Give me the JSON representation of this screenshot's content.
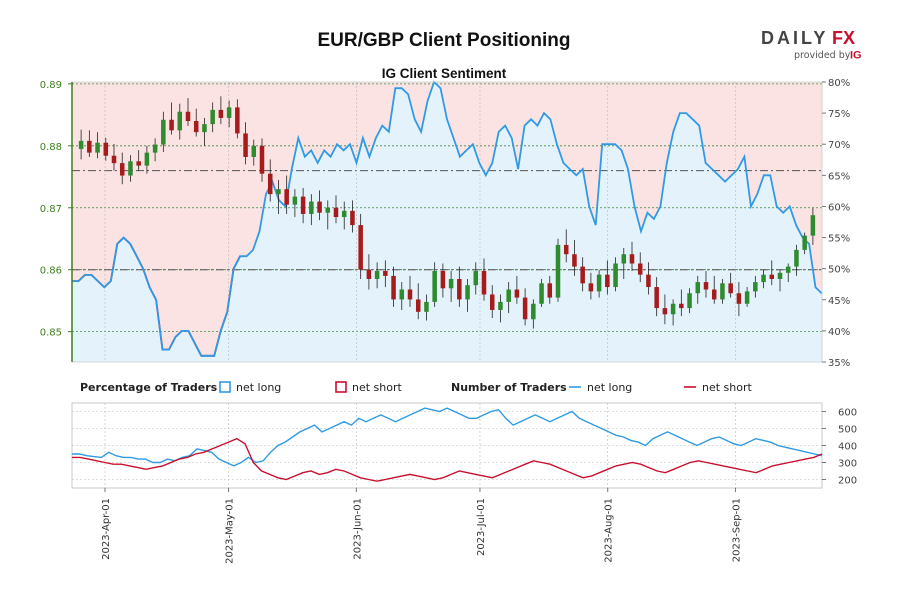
{
  "page": {
    "title": "EUR/GBP Client Positioning",
    "subtitle": "IG Client Sentiment",
    "brand": {
      "name_left": "DAILY",
      "name_right": "FX",
      "provided_by": "provided by",
      "ig": "IG"
    }
  },
  "colors": {
    "long": "#2f9be4",
    "short": "#c8102e",
    "long_fill": "#e4f2fb",
    "short_fill": "#fbe3e4",
    "bull": "#2e8b2e",
    "bear": "#a61c1c",
    "grid": "#3f8a3f",
    "price_axis": "#3f7f1f"
  },
  "legend": {
    "percentage_heading": "Percentage of Traders",
    "number_heading": "Number of Traders",
    "net_long": "net long",
    "net_short": "net short"
  },
  "chart_data": {
    "type": "candlestick+line",
    "x_axis": {
      "labels": [
        "2023-Apr-01",
        "2023-May-01",
        "2023-Jun-01",
        "2023-Jul-01",
        "2023-Aug-01",
        "2023-Sep-01"
      ],
      "range": [
        "2023-03-24",
        "2023-09-22"
      ]
    },
    "price_axis": {
      "ticks": [
        "0.89",
        "0.88",
        "0.87",
        "0.86",
        "0.85"
      ],
      "range": [
        0.8451,
        0.8903
      ]
    },
    "percent_axis": {
      "ticks": [
        "80%",
        "75%",
        "70%",
        "65%",
        "60%",
        "55%",
        "50%",
        "45%",
        "40%",
        "35%"
      ],
      "range": [
        35,
        80
      ]
    },
    "count_axis": {
      "ticks": [
        "600",
        "500",
        "400",
        "300",
        "200"
      ],
      "range": [
        150,
        650
      ]
    },
    "reference_lines": {
      "price": [
        0.86,
        0.876
      ]
    },
    "net_long_pct": [
      48,
      48,
      49,
      49,
      48,
      47,
      48,
      54,
      55,
      54,
      52,
      50,
      47,
      45,
      37,
      37,
      39,
      40,
      40,
      38,
      36,
      36,
      36,
      40,
      43,
      50,
      52,
      52,
      53,
      56,
      62,
      64,
      61,
      60,
      66,
      71,
      68,
      69,
      67,
      69,
      68,
      70,
      69,
      70,
      67,
      71,
      68,
      71,
      73,
      72,
      79,
      79,
      78,
      74,
      72,
      77,
      80,
      79,
      74,
      71,
      68,
      69,
      70,
      67,
      65,
      67,
      72,
      73,
      71,
      66,
      73,
      74,
      73,
      75,
      74,
      70,
      67,
      66,
      65,
      66,
      60,
      57,
      70,
      70,
      70,
      69,
      66,
      60,
      56,
      59,
      58,
      60,
      67,
      72,
      75,
      75,
      74,
      73,
      67,
      66,
      65,
      64,
      65,
      66,
      68,
      60,
      62,
      65,
      65,
      60,
      59,
      60,
      57,
      55,
      54,
      47,
      46
    ],
    "net_short_pct": [
      52,
      52,
      51,
      51,
      52,
      53,
      52,
      46,
      45,
      46,
      48,
      50,
      53,
      55,
      63,
      63,
      61,
      60,
      60,
      62,
      64,
      64,
      64,
      60,
      57,
      50,
      48
    ],
    "net_long_count": [
      350,
      350,
      340,
      335,
      330,
      360,
      340,
      330,
      330,
      320,
      320,
      300,
      300,
      320,
      310,
      330,
      340,
      380,
      370,
      360,
      320,
      300,
      280,
      300,
      330,
      300,
      310,
      360,
      400,
      420,
      450,
      480,
      500,
      520,
      480,
      500,
      520,
      540,
      520,
      560,
      540,
      560,
      580,
      560,
      540,
      560,
      580,
      600,
      620,
      610,
      600,
      620,
      600,
      580,
      560,
      560,
      580,
      600,
      610,
      560,
      520,
      540,
      560,
      580,
      560,
      540,
      560,
      580,
      600,
      560,
      540,
      520,
      500,
      480,
      460,
      450,
      430,
      420,
      400,
      440,
      460,
      480,
      460,
      440,
      420,
      400,
      420,
      440,
      450,
      430,
      410,
      400,
      420,
      440,
      430,
      420,
      400,
      390,
      380,
      370,
      360,
      350,
      340
    ],
    "net_short_count": [
      330,
      330,
      320,
      310,
      300,
      290,
      290,
      280,
      270,
      260,
      270,
      280,
      300,
      320,
      330,
      350,
      360,
      380,
      400,
      420,
      440,
      410,
      300,
      250,
      230,
      210,
      200,
      220,
      240,
      250,
      230,
      240,
      260,
      250,
      230,
      210,
      200,
      190,
      200,
      210,
      220,
      230,
      220,
      210,
      200,
      210,
      230,
      250,
      240,
      230,
      220,
      210,
      230,
      250,
      270,
      290,
      310,
      300,
      290,
      270,
      250,
      230,
      210,
      220,
      240,
      260,
      280,
      290,
      300,
      290,
      270,
      250,
      240,
      260,
      280,
      300,
      310,
      300,
      290,
      280,
      270,
      260,
      250,
      240,
      260,
      280,
      290,
      300,
      310,
      320,
      330,
      350
    ],
    "candles": [
      [
        0.8795,
        0.8826,
        0.8778,
        0.8808
      ],
      [
        0.8808,
        0.8825,
        0.8782,
        0.8789
      ],
      [
        0.8789,
        0.8822,
        0.878,
        0.8805
      ],
      [
        0.8805,
        0.8813,
        0.8776,
        0.8784
      ],
      [
        0.8784,
        0.8803,
        0.876,
        0.8772
      ],
      [
        0.8772,
        0.8789,
        0.8738,
        0.8752
      ],
      [
        0.8752,
        0.8785,
        0.8742,
        0.8775
      ],
      [
        0.8775,
        0.8793,
        0.876,
        0.8768
      ],
      [
        0.8768,
        0.88,
        0.8755,
        0.8789
      ],
      [
        0.8789,
        0.8812,
        0.8775,
        0.8802
      ],
      [
        0.8802,
        0.8855,
        0.879,
        0.8842
      ],
      [
        0.8842,
        0.887,
        0.8818,
        0.8825
      ],
      [
        0.8825,
        0.8868,
        0.881,
        0.8855
      ],
      [
        0.8855,
        0.8877,
        0.8832,
        0.884
      ],
      [
        0.884,
        0.886,
        0.8815,
        0.8822
      ],
      [
        0.8822,
        0.8845,
        0.88,
        0.8835
      ],
      [
        0.8835,
        0.887,
        0.8822,
        0.8858
      ],
      [
        0.8858,
        0.888,
        0.8835,
        0.8845
      ],
      [
        0.8845,
        0.8873,
        0.883,
        0.8862
      ],
      [
        0.8862,
        0.8875,
        0.8812,
        0.882
      ],
      [
        0.882,
        0.8838,
        0.877,
        0.8782
      ],
      [
        0.8782,
        0.881,
        0.8768,
        0.88
      ],
      [
        0.88,
        0.8812,
        0.8742,
        0.8755
      ],
      [
        0.8755,
        0.8778,
        0.871,
        0.8722
      ],
      [
        0.8722,
        0.8745,
        0.869,
        0.873
      ],
      [
        0.873,
        0.8752,
        0.869,
        0.8705
      ],
      [
        0.8705,
        0.873,
        0.8685,
        0.8718
      ],
      [
        0.8718,
        0.8732,
        0.8675,
        0.869
      ],
      [
        0.869,
        0.8722,
        0.8672,
        0.871
      ],
      [
        0.871,
        0.8728,
        0.868,
        0.8692
      ],
      [
        0.8692,
        0.8712,
        0.8665,
        0.87
      ],
      [
        0.87,
        0.872,
        0.8675,
        0.8685
      ],
      [
        0.8685,
        0.871,
        0.8665,
        0.8695
      ],
      [
        0.8695,
        0.8712,
        0.866,
        0.8672
      ],
      [
        0.8672,
        0.869,
        0.8585,
        0.86
      ],
      [
        0.86,
        0.8625,
        0.8568,
        0.8585
      ],
      [
        0.8585,
        0.8612,
        0.857,
        0.8598
      ],
      [
        0.8598,
        0.8615,
        0.8572,
        0.859
      ],
      [
        0.859,
        0.8605,
        0.854,
        0.8552
      ],
      [
        0.8552,
        0.858,
        0.8535,
        0.8568
      ],
      [
        0.8568,
        0.859,
        0.854,
        0.8552
      ],
      [
        0.8552,
        0.8578,
        0.852,
        0.8532
      ],
      [
        0.8532,
        0.856,
        0.8518,
        0.8548
      ],
      [
        0.8548,
        0.8612,
        0.854,
        0.8598
      ],
      [
        0.8598,
        0.861,
        0.8555,
        0.857
      ],
      [
        0.857,
        0.8598,
        0.8548,
        0.8585
      ],
      [
        0.8585,
        0.8605,
        0.854,
        0.8552
      ],
      [
        0.8552,
        0.8585,
        0.8532,
        0.8575
      ],
      [
        0.8575,
        0.8612,
        0.856,
        0.8598
      ],
      [
        0.8598,
        0.8618,
        0.855,
        0.856
      ],
      [
        0.856,
        0.8575,
        0.8522,
        0.8535
      ],
      [
        0.8535,
        0.856,
        0.8515,
        0.8548
      ],
      [
        0.8548,
        0.858,
        0.853,
        0.8568
      ],
      [
        0.8568,
        0.859,
        0.8545,
        0.8555
      ],
      [
        0.8555,
        0.857,
        0.851,
        0.852
      ],
      [
        0.852,
        0.8552,
        0.8505,
        0.8545
      ],
      [
        0.8545,
        0.8585,
        0.854,
        0.8578
      ],
      [
        0.8578,
        0.859,
        0.8545,
        0.8555
      ],
      [
        0.8555,
        0.865,
        0.8548,
        0.864
      ],
      [
        0.864,
        0.8665,
        0.8612,
        0.8625
      ],
      [
        0.8625,
        0.8648,
        0.859,
        0.8605
      ],
      [
        0.8605,
        0.862,
        0.8565,
        0.8578
      ],
      [
        0.8578,
        0.8595,
        0.8552,
        0.8565
      ],
      [
        0.8565,
        0.86,
        0.8555,
        0.8592
      ],
      [
        0.8592,
        0.8615,
        0.856,
        0.8572
      ],
      [
        0.8572,
        0.862,
        0.8565,
        0.861
      ],
      [
        0.861,
        0.8635,
        0.8585,
        0.8625
      ],
      [
        0.8625,
        0.8645,
        0.8598,
        0.861
      ],
      [
        0.861,
        0.8628,
        0.858,
        0.8592
      ],
      [
        0.8592,
        0.8612,
        0.856,
        0.8572
      ],
      [
        0.8572,
        0.8588,
        0.8525,
        0.8538
      ],
      [
        0.8538,
        0.856,
        0.8512,
        0.8528
      ],
      [
        0.8528,
        0.8552,
        0.851,
        0.8545
      ],
      [
        0.8545,
        0.8568,
        0.8525,
        0.8538
      ],
      [
        0.8538,
        0.857,
        0.853,
        0.8562
      ],
      [
        0.8562,
        0.859,
        0.8545,
        0.858
      ],
      [
        0.858,
        0.8598,
        0.8555,
        0.8568
      ],
      [
        0.8568,
        0.859,
        0.8545,
        0.8552
      ],
      [
        0.8552,
        0.8585,
        0.8545,
        0.8578
      ],
      [
        0.8578,
        0.8595,
        0.8555,
        0.8562
      ],
      [
        0.8562,
        0.858,
        0.8525,
        0.8545
      ],
      [
        0.8545,
        0.8572,
        0.854,
        0.8565
      ],
      [
        0.8565,
        0.859,
        0.8555,
        0.858
      ],
      [
        0.858,
        0.86,
        0.857,
        0.8592
      ],
      [
        0.8592,
        0.8615,
        0.8575,
        0.8585
      ],
      [
        0.8585,
        0.86,
        0.8565,
        0.8595
      ],
      [
        0.8595,
        0.861,
        0.858,
        0.8605
      ],
      [
        0.8605,
        0.864,
        0.859,
        0.8632
      ],
      [
        0.8632,
        0.866,
        0.8625,
        0.8655
      ],
      [
        0.8655,
        0.87,
        0.864,
        0.8688
      ]
    ]
  }
}
